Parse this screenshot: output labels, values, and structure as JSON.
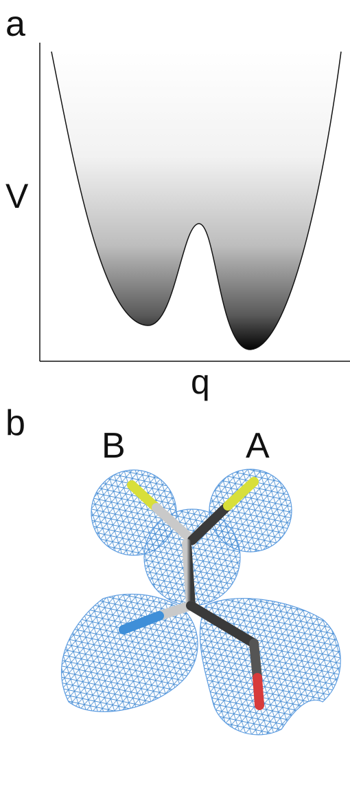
{
  "panel_a": {
    "label": "a",
    "y_axis_label": "V",
    "x_axis_label": "q"
  },
  "panel_b": {
    "label": "b",
    "left_label": "B",
    "right_label": "A"
  }
}
